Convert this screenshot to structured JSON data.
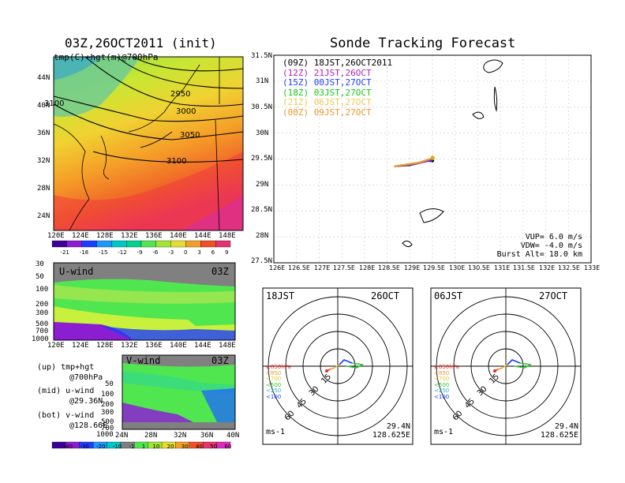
{
  "titles": {
    "init": "03Z,26OCT2011 (init)",
    "main": "Sonde Tracking Forecast"
  },
  "colors": {
    "purple": "#8c1ed2",
    "blue": "#1e3cff",
    "cyan": "#00c8c8",
    "green": "#00d28c",
    "lime": "#a0e632",
    "yellow": "#e6dc32",
    "orange": "#f0822d",
    "red": "#fa3c3c",
    "magenta": "#dc2dbe",
    "gray": "#808080"
  },
  "panel_map700": {
    "label": "tmp(C)+hgt(m)@700hPa",
    "y_ticks": [
      "44N",
      "40N",
      "36N",
      "32N",
      "28N",
      "24N"
    ],
    "x_ticks": [
      "120E",
      "124E",
      "128E",
      "132E",
      "136E",
      "140E",
      "144E",
      "148E"
    ],
    "contours": [
      "2950",
      "3000",
      "3050",
      "3100",
      "3100",
      "3050"
    ],
    "colorbar": [
      "-21",
      "-18",
      "-15",
      "-12",
      "-9",
      "-6",
      "-3",
      "0",
      "3",
      "6",
      "9"
    ]
  },
  "panel_uwind": {
    "label": "U-wind",
    "time": "03Z",
    "y_ticks": [
      "30",
      "50",
      "100",
      "200",
      "300",
      "500",
      "700",
      "1000"
    ],
    "x_ticks": [
      "120E",
      "124E",
      "128E",
      "132E",
      "136E",
      "140E",
      "144E",
      "148E"
    ]
  },
  "panel_vwind": {
    "label": "V-wind",
    "time": "03Z",
    "y_ticks": [
      "50",
      "100",
      "200",
      "300",
      "500",
      "700",
      "1000"
    ],
    "x_ticks": [
      "24N",
      "28N",
      "32N",
      "36N",
      "40N"
    ],
    "colorbar": [
      "-40",
      "-30",
      "-20",
      "-10",
      "-1",
      "1",
      "10",
      "20",
      "30",
      "40",
      "50",
      "60"
    ]
  },
  "legend_left": {
    "lines": [
      "(up) tmp+hgt",
      "@700hPa",
      "(mid) u-wind",
      "@29.36N",
      "(bot) v-wind",
      "@128.66E"
    ]
  },
  "track_map": {
    "y_ticks": [
      "31.5N",
      "31N",
      "30.5N",
      "30N",
      "29.5N",
      "29N",
      "28.5N",
      "28N",
      "27.5N"
    ],
    "x_ticks": [
      "126E",
      "126.5E",
      "127E",
      "127.5E",
      "128E",
      "128.5E",
      "129E",
      "129.5E",
      "130E",
      "130.5E",
      "131E",
      "131.5E",
      "132E",
      "132.5E",
      "133E"
    ],
    "legend": [
      {
        "text": "(09Z) 18JST,26OCT2011",
        "color": "#000000"
      },
      {
        "text": "(12Z) 21JST,26OCT",
        "color": "#b41eb4"
      },
      {
        "text": "(15Z) 00JST,27OCT",
        "color": "#1e3cff"
      },
      {
        "text": "(18Z) 03JST,27OCT",
        "color": "#14c814"
      },
      {
        "text": "(21Z) 06JST,27OCT",
        "color": "#f0c850"
      },
      {
        "text": "(00Z) 09JST,27OCT",
        "color": "#f09628"
      }
    ],
    "info": [
      "VUP= 6.0 m/s",
      "VDW= -4.0 m/s",
      "Burst Alt= 18.0 km"
    ]
  },
  "hodo_left": {
    "time": "18JST",
    "date": "26OCT",
    "rings": [
      "15",
      "30",
      "45",
      "60"
    ],
    "levels": [
      "≥850hPa",
      "<850",
      "<700",
      "<500",
      "<250",
      "<100"
    ],
    "unit": "ms-1",
    "lat": "29.4N",
    "lon": "128.625E"
  },
  "hodo_right": {
    "time": "06JST",
    "date": "27OCT",
    "rings": [
      "15",
      "30",
      "45",
      "60"
    ],
    "levels": [
      "≥850hPa",
      "<850",
      "<700",
      "<500",
      "<250",
      "<100"
    ],
    "unit": "ms-1",
    "lat": "29.4N",
    "lon": "128.625E"
  },
  "chart_data": [
    {
      "type": "heatmap",
      "title": "03Z,26OCT2011 (init)",
      "subtitle": "tmp(C)+hgt(m)@700hPa",
      "xlim": [
        120,
        149
      ],
      "ylim": [
        22,
        48
      ],
      "contour_labels": [
        2950,
        3000,
        3050,
        3100
      ],
      "colorbar": [
        -21,
        -18,
        -15,
        -12,
        -9,
        -6,
        -3,
        0,
        3,
        6,
        9
      ]
    },
    {
      "type": "heatmap",
      "title": "U-wind",
      "xlim": [
        120,
        149
      ],
      "ylim": [
        1000,
        30
      ],
      "y_ticks": [
        30,
        50,
        100,
        200,
        300,
        500,
        700,
        1000
      ]
    },
    {
      "type": "heatmap",
      "title": "V-wind",
      "xlim": [
        24,
        40
      ],
      "ylim": [
        1000,
        30
      ],
      "colorbar": [
        -40,
        -30,
        -20,
        -10,
        -1,
        1,
        10,
        20,
        30,
        40,
        50,
        60
      ]
    },
    {
      "type": "line",
      "title": "Sonde Tracking Forecast",
      "xlim": [
        126,
        133
      ],
      "ylim": [
        27.5,
        31.5
      ],
      "series": [
        {
          "name": "(09Z) 18JST,26OCT2011",
          "x": [
            128.66,
            129.0,
            129.2,
            129.3,
            129.5
          ],
          "y": [
            29.36,
            29.38,
            29.42,
            29.45,
            29.47
          ]
        },
        {
          "name": "(12Z) 21JST,26OCT",
          "x": [
            128.66,
            129.1,
            129.35,
            129.45
          ],
          "y": [
            29.36,
            29.4,
            29.45,
            29.47
          ]
        },
        {
          "name": "(15Z) 00JST,27OCT",
          "x": [
            128.66,
            129.1,
            129.4,
            129.48
          ],
          "y": [
            29.36,
            29.41,
            29.47,
            29.49
          ]
        },
        {
          "name": "(18Z) 03JST,27OCT",
          "x": [
            128.66,
            129.2,
            129.4,
            129.5
          ],
          "y": [
            29.36,
            29.43,
            29.49,
            29.51
          ]
        },
        {
          "name": "(21Z) 06JST,27OCT",
          "x": [
            128.66,
            129.2,
            129.45,
            129.52
          ],
          "y": [
            29.36,
            29.43,
            29.5,
            29.52
          ]
        },
        {
          "name": "(00Z) 09JST,27OCT",
          "x": [
            128.66,
            129.25,
            129.45,
            129.5
          ],
          "y": [
            29.36,
            29.44,
            29.5,
            29.53
          ]
        }
      ]
    }
  ]
}
